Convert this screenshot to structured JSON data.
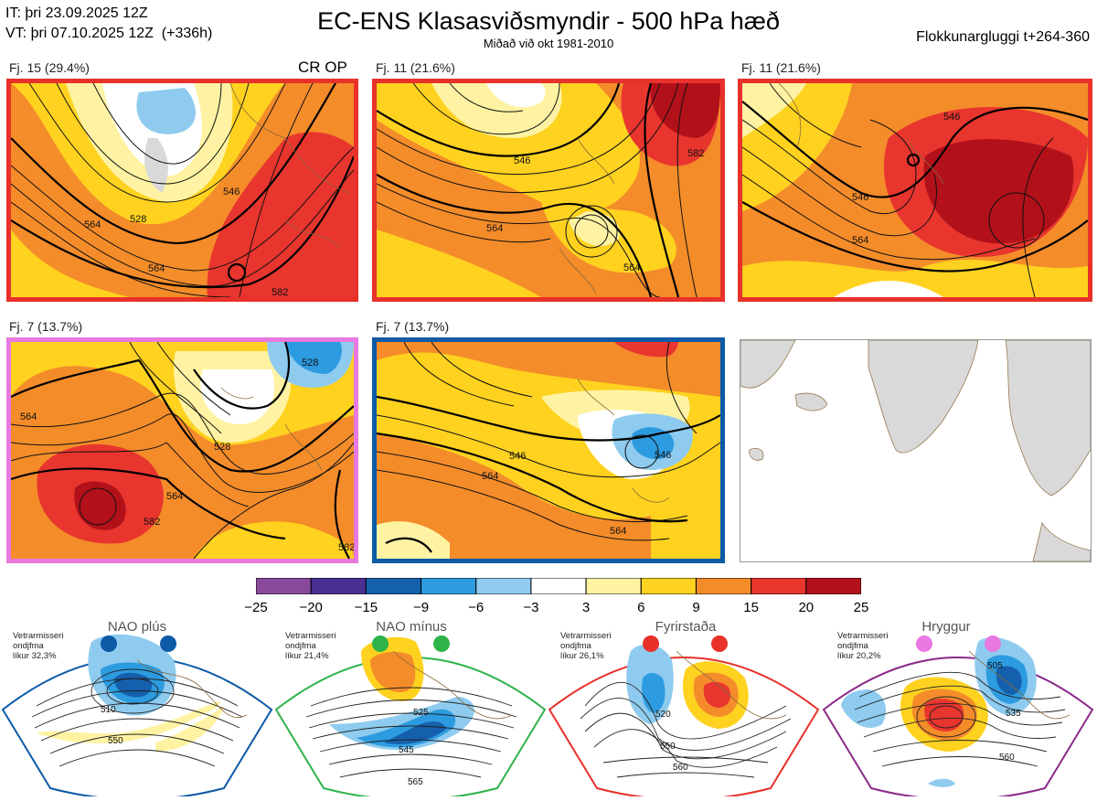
{
  "header": {
    "init_time": "IT: þri 23.09.2025 12Z",
    "valid_time": "VT: þri 07.10.2025 12Z  (+336h)",
    "title": "EC-ENS Klasasviðsmyndir - 500 hPa hæð",
    "subtitle": "Miðað við okt 1981-2010",
    "window": "Flokkunargluggi t+264-360"
  },
  "clusters": [
    {
      "label": "Fj. 15 (29.4%)",
      "extra": "CR OP",
      "frame_color": "#e8312a",
      "contours": [
        "528",
        "546",
        "564",
        "564",
        "582"
      ]
    },
    {
      "label": "Fj. 11 (21.6%)",
      "frame_color": "#e8312a",
      "contours": [
        "546",
        "564",
        "564",
        "582"
      ]
    },
    {
      "label": "Fj. 11 (21.6%)",
      "frame_color": "#e8312a",
      "contours": [
        "546",
        "546",
        "564"
      ]
    },
    {
      "label": "Fj. 7 (13.7%)",
      "frame_color": "#e779e0",
      "contours": [
        "528",
        "528",
        "564",
        "564",
        "582",
        "582"
      ]
    },
    {
      "label": "Fj. 7 (13.7%)",
      "frame_color": "#0d5aa7",
      "contours": [
        "546",
        "546",
        "564",
        "564"
      ]
    }
  ],
  "colorbar": {
    "ticks": [
      "−25",
      "−20",
      "−15",
      "−9",
      "−6",
      "−3",
      "3",
      "6",
      "9",
      "15",
      "20",
      "25"
    ],
    "colors": [
      "#8a4a9c",
      "#4a2f93",
      "#1560ad",
      "#2d9be0",
      "#8ecbef",
      "#ffffff",
      "#fff3a3",
      "#ffd21f",
      "#f48c2a",
      "#e8352e",
      "#b2111a"
    ]
  },
  "regimes": [
    {
      "name": "NAO plús",
      "info": [
        "Vetrarmisseri",
        "ondjfma",
        "líkur 32,3%"
      ],
      "dot_color": "#0d5aa7",
      "frame_color": "#0d5aa7",
      "contours": [
        "510",
        "550"
      ]
    },
    {
      "name": "NAO mínus",
      "info": [
        "Vetrarmisseri",
        "ondjfma",
        "líkur 21,4%"
      ],
      "dot_color": "#2db34a",
      "frame_color": "#2db34a",
      "contours": [
        "525",
        "545",
        "565"
      ]
    },
    {
      "name": "Fyrirstaða",
      "info": [
        "Vetrarmisseri",
        "ondjfma",
        "líkur 26,1%"
      ],
      "dot_color": "#e8312a",
      "frame_color": "#e8312a",
      "contours": [
        "520",
        "550",
        "560"
      ]
    },
    {
      "name": "Hryggur",
      "info": [
        "Vetrarmisseri",
        "ondjfma",
        "líkur 20,2%"
      ],
      "dot_color": "#e779e0",
      "frame_color": "#8a2a8a",
      "contours": [
        "505",
        "535",
        "560"
      ]
    }
  ]
}
